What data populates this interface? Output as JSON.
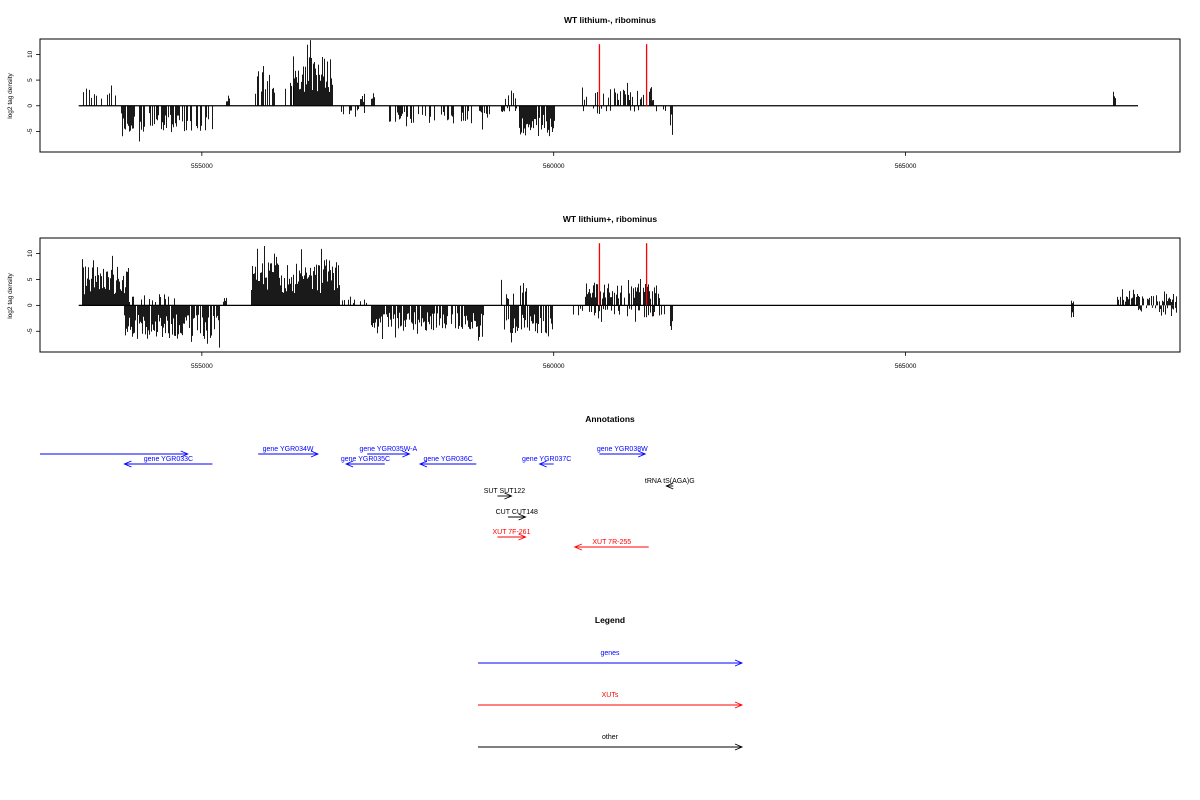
{
  "chart_data": [
    {
      "type": "bar",
      "title": "WT lithium-, ribominus",
      "ylabel": "log2 tag density",
      "xlabel": "",
      "xlim": [
        552700,
        568900
      ],
      "ylim": [
        -9,
        13
      ],
      "xticks": [
        555000,
        560000,
        565000
      ],
      "xticklabels": [
        "555000",
        "560000",
        "565000"
      ],
      "yticks": [
        -5,
        0,
        5,
        10
      ],
      "yticklabels": [
        "-5",
        "0",
        "5",
        "10"
      ],
      "grid": false,
      "red_markers": [
        560650,
        561320
      ],
      "segments": [
        {
          "x0": 553300,
          "x1": 553800,
          "sign": 1,
          "amp": 2.8,
          "density": 0.35
        },
        {
          "x0": 553850,
          "x1": 555150,
          "sign": -1,
          "amp": 4.0,
          "density": 0.55
        },
        {
          "x0": 555350,
          "x1": 555380,
          "sign": 1,
          "amp": 1.5,
          "density": 1
        },
        {
          "x0": 555750,
          "x1": 555950,
          "sign": 1,
          "amp": 6.0,
          "density": 0.6
        },
        {
          "x0": 555950,
          "x1": 556300,
          "sign": 1,
          "amp": 3.0,
          "density": 0.4
        },
        {
          "x0": 556300,
          "x1": 556850,
          "sign": 1,
          "amp": 7.5,
          "density": 1.0
        },
        {
          "x0": 556850,
          "x1": 557300,
          "sign": -1,
          "amp": 1.3,
          "density": 0.15
        },
        {
          "x0": 557250,
          "x1": 557300,
          "sign": 1,
          "amp": 2.0,
          "density": 1
        },
        {
          "x0": 557400,
          "x1": 557450,
          "sign": 1,
          "amp": 1.5,
          "density": 1
        },
        {
          "x0": 557650,
          "x1": 558300,
          "sign": -1,
          "amp": 2.6,
          "density": 0.5
        },
        {
          "x0": 558400,
          "x1": 559100,
          "sign": -1,
          "amp": 2.8,
          "density": 0.5
        },
        {
          "x0": 559300,
          "x1": 559450,
          "sign": 1,
          "amp": 2.2,
          "density": 0.4
        },
        {
          "x0": 559250,
          "x1": 559500,
          "sign": -1,
          "amp": 1.2,
          "density": 0.2
        },
        {
          "x0": 559500,
          "x1": 560000,
          "sign": -1,
          "amp": 4.8,
          "density": 0.9
        },
        {
          "x0": 560400,
          "x1": 561450,
          "sign": 1,
          "amp": 3.0,
          "density": 0.5
        },
        {
          "x0": 560400,
          "x1": 561600,
          "sign": -1,
          "amp": 1.2,
          "density": 0.15
        },
        {
          "x0": 561650,
          "x1": 561680,
          "sign": -1,
          "amp": 4.5,
          "density": 1
        },
        {
          "x0": 567950,
          "x1": 567980,
          "sign": 1,
          "amp": 2.0,
          "density": 1
        }
      ]
    },
    {
      "type": "bar",
      "title": "WT lithium+, ribominus",
      "ylabel": "log2 tag density",
      "xlabel": "",
      "xlim": [
        552700,
        568900
      ],
      "ylim": [
        -9,
        13
      ],
      "xticks": [
        555000,
        560000,
        565000
      ],
      "xticklabels": [
        "555000",
        "560000",
        "565000"
      ],
      "yticks": [
        -5,
        0,
        5,
        10
      ],
      "yticklabels": [
        "-5",
        "0",
        "5",
        "10"
      ],
      "grid": false,
      "red_markers": [
        560650,
        561320
      ],
      "segments": [
        {
          "x0": 553300,
          "x1": 553950,
          "sign": 1,
          "amp": 6.0,
          "density": 1.0
        },
        {
          "x0": 553950,
          "x1": 554600,
          "sign": 1,
          "amp": 1.3,
          "density": 0.3
        },
        {
          "x0": 553900,
          "x1": 555250,
          "sign": -1,
          "amp": 5.0,
          "density": 0.9
        },
        {
          "x0": 555300,
          "x1": 555350,
          "sign": 1,
          "amp": 1.8,
          "density": 1
        },
        {
          "x0": 555700,
          "x1": 556950,
          "sign": 1,
          "amp": 6.5,
          "density": 1.0
        },
        {
          "x0": 556950,
          "x1": 557400,
          "sign": 1,
          "amp": 1.0,
          "density": 0.3
        },
        {
          "x0": 557400,
          "x1": 559000,
          "sign": -1,
          "amp": 3.8,
          "density": 0.8
        },
        {
          "x0": 559250,
          "x1": 559600,
          "sign": 1,
          "amp": 3.0,
          "density": 0.6
        },
        {
          "x0": 559300,
          "x1": 560000,
          "sign": -1,
          "amp": 4.2,
          "density": 0.8
        },
        {
          "x0": 560100,
          "x1": 560400,
          "sign": -1,
          "amp": 1.5,
          "density": 0.3
        },
        {
          "x0": 560450,
          "x1": 561500,
          "sign": 1,
          "amp": 3.5,
          "density": 0.8
        },
        {
          "x0": 560500,
          "x1": 561650,
          "sign": -1,
          "amp": 1.8,
          "density": 0.4
        },
        {
          "x0": 561650,
          "x1": 561680,
          "sign": -1,
          "amp": 4.5,
          "density": 1
        },
        {
          "x0": 567350,
          "x1": 567380,
          "sign": -1,
          "amp": 2.5,
          "density": 1
        },
        {
          "x0": 567350,
          "x1": 567380,
          "sign": 1,
          "amp": 1.0,
          "density": 1
        },
        {
          "x0": 568000,
          "x1": 568850,
          "sign": 1,
          "amp": 1.8,
          "density": 0.6
        },
        {
          "x0": 568000,
          "x1": 568850,
          "sign": -1,
          "amp": 1.2,
          "density": 0.3
        }
      ]
    }
  ],
  "annotations": {
    "title": "Annotations",
    "colors": {
      "genes": "#0000ff",
      "xuts": "#ff0000",
      "other": "#000000"
    },
    "items": [
      {
        "label": "",
        "x0": 552700,
        "x1": 554800,
        "dir": "right",
        "row": 0,
        "color": "#0000ff"
      },
      {
        "label": "gene YGR033C",
        "x0": 553900,
        "x1": 555150,
        "dir": "left",
        "row": 1,
        "color": "#0000ff"
      },
      {
        "label": "gene YGR034W",
        "x0": 555800,
        "x1": 556650,
        "dir": "right",
        "row": 0,
        "color": "#0000ff"
      },
      {
        "label": "gene YGR035C",
        "x0": 557050,
        "x1": 557600,
        "dir": "left",
        "row": 1,
        "color": "#0000ff"
      },
      {
        "label": "gene YGR035W-A",
        "x0": 557350,
        "x1": 557950,
        "dir": "right",
        "row": 0,
        "color": "#0000ff"
      },
      {
        "label": "gene YGR036C",
        "x0": 558100,
        "x1": 558900,
        "dir": "left",
        "row": 1,
        "color": "#0000ff"
      },
      {
        "label": "gene YGR037C",
        "x0": 559800,
        "x1": 560000,
        "dir": "left",
        "row": 1,
        "color": "#0000ff"
      },
      {
        "label": "gene YGR038W",
        "x0": 560650,
        "x1": 561300,
        "dir": "right",
        "row": 0,
        "color": "#0000ff"
      },
      {
        "label": "tRNA tS(AGA)G",
        "x0": 561600,
        "x1": 561700,
        "dir": "left",
        "row": 2,
        "color": "#000000"
      },
      {
        "label": "SUT SUT122",
        "x0": 559200,
        "x1": 559400,
        "dir": "right",
        "row": 3,
        "color": "#000000"
      },
      {
        "label": "CUT CUT148",
        "x0": 559350,
        "x1": 559600,
        "dir": "right",
        "row": 4,
        "color": "#000000"
      },
      {
        "label": "XUT 7F-261",
        "x0": 559200,
        "x1": 559600,
        "dir": "right",
        "row": 5,
        "color": "#ff0000"
      },
      {
        "label": "XUT 7R-255",
        "x0": 560300,
        "x1": 561350,
        "dir": "left",
        "row": 6,
        "color": "#ff0000"
      }
    ]
  },
  "legend": {
    "title": "Legend",
    "items": [
      {
        "label": "genes",
        "color": "#0000ff"
      },
      {
        "label": "XUTs",
        "color": "#ff0000"
      },
      {
        "label": "other",
        "color": "#000000"
      }
    ]
  }
}
